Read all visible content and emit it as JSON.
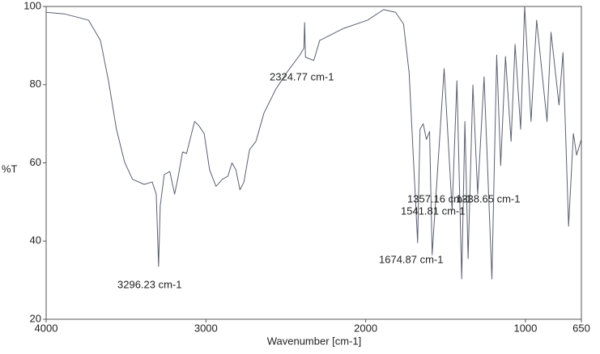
{
  "chart_data": {
    "type": "line",
    "x_label": "Wavenumber [cm-1]",
    "y_label": "%T",
    "x": [
      4000,
      3885,
      3735,
      3660,
      3610,
      3560,
      3510,
      3460,
      3386,
      3336,
      3311,
      3296.23,
      3286,
      3261,
      3226,
      3196,
      3176,
      3146,
      3121,
      3096,
      3071,
      3046,
      3011,
      2977,
      2937,
      2897,
      2862,
      2837,
      2812,
      2787,
      2762,
      2727,
      2687,
      2637,
      2562,
      2487,
      2412,
      2387,
      2382,
      2377,
      2324.77,
      2288,
      2138,
      1988,
      1888,
      1813,
      1763,
      1728,
      1700,
      1674.87,
      1660,
      1640,
      1620,
      1600,
      1584,
      1509,
      1459,
      1429,
      1399,
      1379,
      1359,
      1329,
      1299,
      1259,
      1210,
      1180,
      1155,
      1125,
      1090,
      1065,
      1030,
      1005,
      965,
      930,
      865,
      840,
      790,
      765,
      730,
      700,
      680,
      650
    ],
    "values": [
      98.5,
      98.1,
      96.5,
      91.3,
      81,
      68.6,
      60.3,
      55.8,
      54.5,
      55.1,
      52,
      33.5,
      49,
      57,
      57.8,
      52,
      56,
      62.8,
      62.4,
      66.5,
      70.6,
      69.6,
      67.5,
      58.2,
      54,
      55.8,
      56.6,
      60,
      58.2,
      53.1,
      55.1,
      63.4,
      65.5,
      72.7,
      78.9,
      83.5,
      87.6,
      89.3,
      95.9,
      87,
      86.2,
      91.3,
      94.4,
      96.5,
      99.2,
      98.5,
      95.5,
      83,
      60,
      39.6,
      68.6,
      70,
      66,
      68,
      36.5,
      84.1,
      47.9,
      81,
      30.3,
      70.6,
      35.5,
      79.9,
      52,
      82,
      30.3,
      87.6,
      59.3,
      87.2,
      65.5,
      90.3,
      68.6,
      100,
      70.6,
      96.5,
      70.6,
      93.4,
      74.8,
      88.2,
      43.8,
      67.5,
      62,
      66
    ],
    "color": "#5a6070",
    "xlim": [
      4000,
      650
    ],
    "ylim": [
      20,
      100
    ],
    "xticks": [
      4000,
      3000,
      2000,
      1000,
      650
    ],
    "yticks": [
      20,
      40,
      60,
      80,
      100
    ],
    "grid": false,
    "annotations": [
      "2324.77 cm-1",
      "3296.23 cm-1",
      "1674.87 cm-1",
      "1541.81 cm-1",
      "1357.16 cm-1",
      "1338.65 cm-1"
    ]
  }
}
